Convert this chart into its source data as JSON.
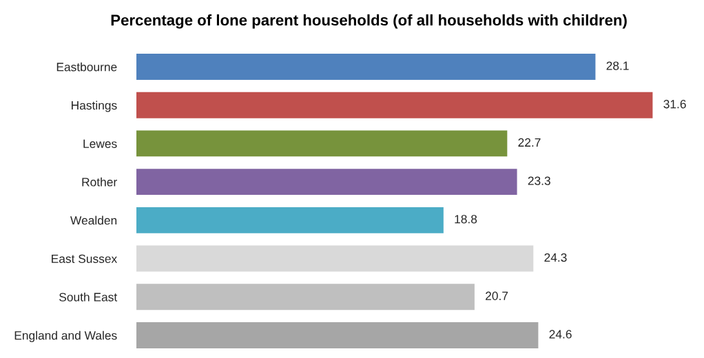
{
  "chart_data": {
    "type": "bar",
    "orientation": "horizontal",
    "title": "Percentage of lone parent households (of all households with children)",
    "categories": [
      "Eastbourne",
      "Hastings",
      "Lewes",
      "Rother",
      "Wealden",
      "East Sussex",
      "South East",
      "England and Wales"
    ],
    "values": [
      28.1,
      31.6,
      22.7,
      23.3,
      18.8,
      24.3,
      20.7,
      24.6
    ],
    "colors": [
      "#4f81bd",
      "#c0504d",
      "#77933c",
      "#8064a2",
      "#4bacc6",
      "#d9d9d9",
      "#bfbfbf",
      "#a6a6a6"
    ],
    "tick_labels": "y",
    "data_labels": true
  }
}
